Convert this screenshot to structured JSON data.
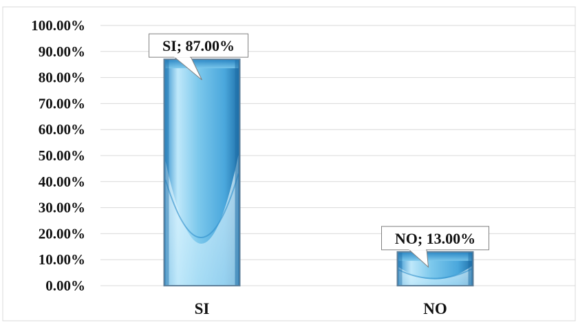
{
  "chart_data": {
    "type": "bar",
    "categories": [
      "SI",
      "NO"
    ],
    "values": [
      87.0,
      13.0
    ],
    "value_format": "percent_2dp",
    "data_labels": [
      "SI; 87.00%",
      "NO; 13.00%"
    ],
    "y_tick_labels": [
      "0.00%",
      "10.00%",
      "20.00%",
      "30.00%",
      "40.00%",
      "50.00%",
      "60.00%",
      "70.00%",
      "80.00%",
      "90.00%",
      "100.00%"
    ],
    "ylim": [
      0,
      100
    ],
    "y_step": 10,
    "grid": true,
    "legend": "none",
    "colors": {
      "bar_light": "#d6f2fc",
      "bar_mid": "#7cc8ec",
      "bar_dark": "#2f8fcc",
      "bar_edge": "#5f7f99",
      "grid": "#d9d9d9"
    }
  }
}
